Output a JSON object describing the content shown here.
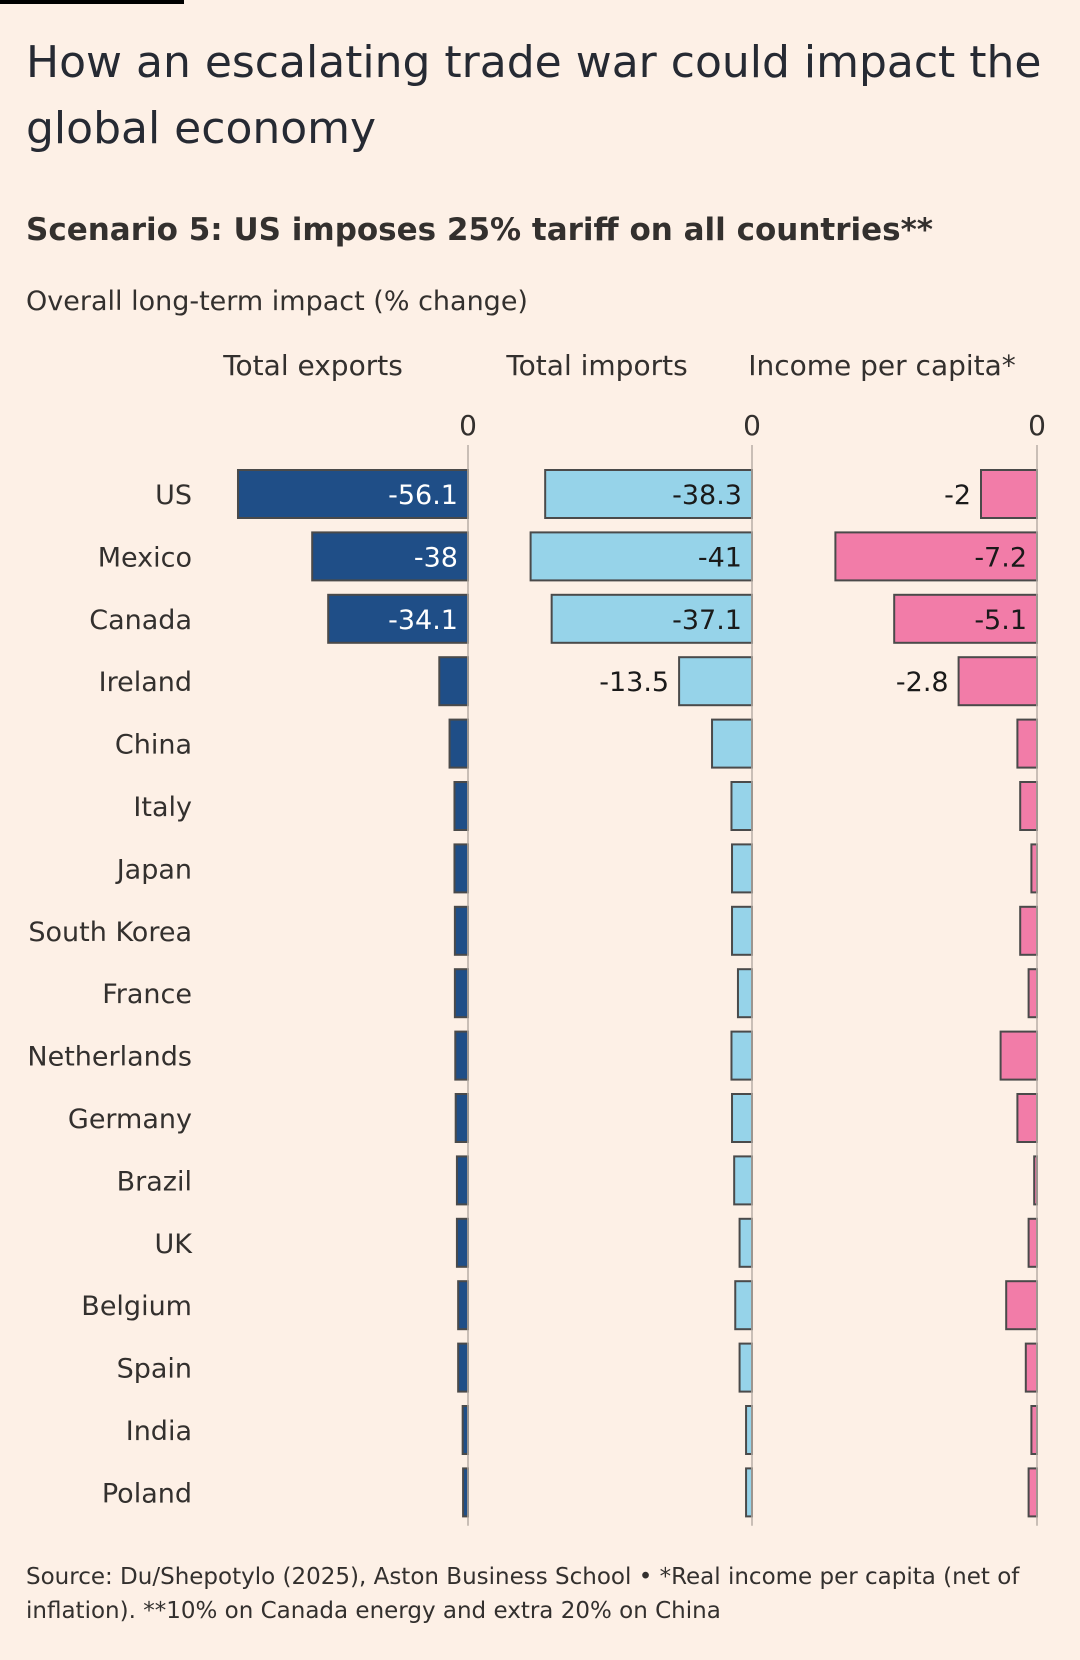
{
  "title": "How an escalating trade war could impact the global economy",
  "subtitle": "Scenario 5: US imposes 25% tariff on all countries**",
  "measure": "Overall long-term impact (% change)",
  "source": "Source: Du/Shepotylo (2025), Aston Business School • *Real income per capita (net of inflation). **10% on Canada energy and extra 20% on China",
  "chart_data": {
    "type": "bar",
    "orientation": "horizontal",
    "categories": [
      "US",
      "Mexico",
      "Canada",
      "Ireland",
      "China",
      "Italy",
      "Japan",
      "South Korea",
      "France",
      "Netherlands",
      "Germany",
      "Brazil",
      "UK",
      "Belgium",
      "Spain",
      "India",
      "Poland"
    ],
    "panels": [
      {
        "name": "Total exports",
        "zero_label": "0",
        "color": "#1f4e87",
        "label_color": "#ffffff",
        "xlim": [
          -60,
          0
        ],
        "values": [
          -56.1,
          -38,
          -34.1,
          -7,
          -4.5,
          -3.3,
          -3.3,
          -3.2,
          -3.2,
          -3.1,
          -3,
          -2.7,
          -2.7,
          -2.4,
          -2.4,
          -1.3,
          -1.2
        ],
        "data_labels": [
          "-56.1",
          "-38",
          "-34.1",
          null,
          null,
          null,
          null,
          null,
          null,
          null,
          null,
          null,
          null,
          null,
          null,
          null,
          null
        ]
      },
      {
        "name": "Total imports",
        "zero_label": "0",
        "color": "#96d3e9",
        "label_color": "#1a1a1a",
        "xlim": [
          -60,
          0
        ],
        "values": [
          -38.3,
          -41,
          -37.1,
          -13.5,
          -7.4,
          -3.8,
          -3.7,
          -3.7,
          -2.6,
          -3.8,
          -3.7,
          -3.3,
          -2.3,
          -3.1,
          -2.3,
          -1.1,
          -1.1
        ],
        "data_labels": [
          "-38.3",
          "-41",
          "-37.1",
          "-13.5",
          null,
          null,
          null,
          null,
          null,
          null,
          null,
          null,
          null,
          null,
          null,
          null,
          null
        ]
      },
      {
        "name": "Income per capita*",
        "zero_label": "0",
        "color": "#f27ca8",
        "label_color": "#1a1a1a",
        "xlim": [
          -8,
          0
        ],
        "values": [
          -2,
          -7.2,
          -5.1,
          -2.8,
          -0.7,
          -0.6,
          -0.2,
          -0.6,
          -0.3,
          -1.3,
          -0.7,
          -0.1,
          -0.3,
          -1.1,
          -0.4,
          -0.2,
          -0.3
        ],
        "data_labels": [
          "-2",
          "-7.2",
          "-5.1",
          "-2.8",
          null,
          null,
          null,
          null,
          null,
          null,
          null,
          null,
          null,
          null,
          null,
          null,
          null
        ]
      }
    ]
  }
}
